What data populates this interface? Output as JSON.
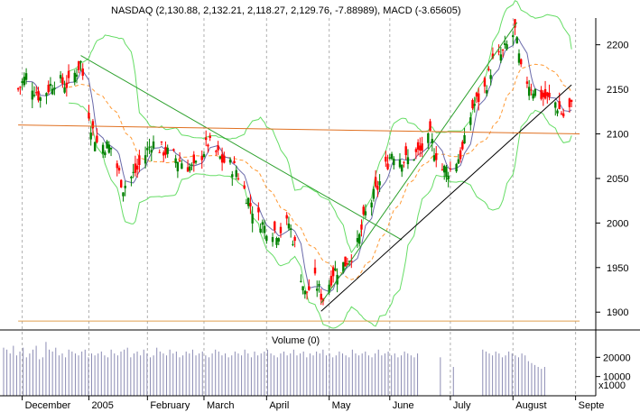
{
  "chart_data": [
    {
      "type": "candlestick",
      "panel": "price",
      "header": "NASDAQ (2,130.88, 2,132.21, 2,118.27, 2,129.76, -7.88989), MACD (-3.65605)",
      "ylim": [
        1880,
        2230
      ],
      "y_ticks": [
        "2200",
        "2150",
        "2100",
        "2050",
        "2000",
        "1950",
        "1900"
      ],
      "y_tick_values": [
        2200,
        2150,
        2100,
        2050,
        2000,
        1950,
        1900
      ],
      "grid": "vertical dashed at month starts",
      "close_path": [
        [
          "2004-11-29",
          2150
        ],
        [
          "2004-12-03",
          2165
        ],
        [
          "2004-12-10",
          2140
        ],
        [
          "2004-12-17",
          2160
        ],
        [
          "2004-12-24",
          2155
        ],
        [
          "2004-12-30",
          2180
        ],
        [
          "2005-01-04",
          2110
        ],
        [
          "2005-01-07",
          2090
        ],
        [
          "2005-01-14",
          2085
        ],
        [
          "2005-01-20",
          2040
        ],
        [
          "2005-01-27",
          2060
        ],
        [
          "2005-02-03",
          2090
        ],
        [
          "2005-02-10",
          2080
        ],
        [
          "2005-02-17",
          2070
        ],
        [
          "2005-02-24",
          2060
        ],
        [
          "2005-03-03",
          2090
        ],
        [
          "2005-03-10",
          2070
        ],
        [
          "2005-03-17",
          2060
        ],
        [
          "2005-03-24",
          2020
        ],
        [
          "2005-03-31",
          1995
        ],
        [
          "2005-04-07",
          1990
        ],
        [
          "2005-04-12",
          2000
        ],
        [
          "2005-04-15",
          1975
        ],
        [
          "2005-04-20",
          1920
        ],
        [
          "2005-04-25",
          1935
        ],
        [
          "2005-04-29",
          1915
        ],
        [
          "2005-05-04",
          1945
        ],
        [
          "2005-05-10",
          1955
        ],
        [
          "2005-05-16",
          1975
        ],
        [
          "2005-05-20",
          2010
        ],
        [
          "2005-05-26",
          2040
        ],
        [
          "2005-06-02",
          2080
        ],
        [
          "2005-06-09",
          2070
        ],
        [
          "2005-06-16",
          2080
        ],
        [
          "2005-06-21",
          2095
        ],
        [
          "2005-06-27",
          2060
        ],
        [
          "2005-07-01",
          2060
        ],
        [
          "2005-07-07",
          2080
        ],
        [
          "2005-07-12",
          2130
        ],
        [
          "2005-07-18",
          2150
        ],
        [
          "2005-07-22",
          2180
        ],
        [
          "2005-07-27",
          2190
        ],
        [
          "2005-08-02",
          2215
        ],
        [
          "2005-08-05",
          2170
        ],
        [
          "2005-08-11",
          2150
        ],
        [
          "2005-08-17",
          2140
        ],
        [
          "2005-08-22",
          2135
        ],
        [
          "2005-08-26",
          2120
        ],
        [
          "2005-08-30",
          2130
        ]
      ],
      "trendlines": [
        {
          "name": "down",
          "color": "#2ca02c",
          "from": [
            "2004-12-30",
            2188
          ],
          "to": [
            "2005-06-07",
            1981
          ]
        },
        {
          "name": "up-outer",
          "color": "#2ca02c",
          "from": [
            "2005-04-28",
            1910
          ],
          "to": [
            "2005-08-03",
            2225
          ]
        },
        {
          "name": "up-support",
          "color": "#000000",
          "from": [
            "2005-04-28",
            1901
          ],
          "to": [
            "2005-08-30",
            2155
          ]
        },
        {
          "name": "resistance",
          "color": "#e07020",
          "from": [
            "2004-11-29",
            2110
          ],
          "to": [
            "2005-09-03",
            2100
          ]
        },
        {
          "name": "floor",
          "color": "#e0a050",
          "from": [
            "2004-11-29",
            1890
          ],
          "to": [
            "2005-09-03",
            1890
          ]
        }
      ]
    },
    {
      "type": "bar",
      "panel": "volume",
      "title": "Volume (0)",
      "y_ticks": [
        "20000",
        "10000"
      ],
      "y_tick_values": [
        20000,
        10000
      ],
      "unit_label": "x1000",
      "ylim": [
        0,
        30000
      ],
      "values": [
        25000,
        24000,
        22000,
        26000,
        21000,
        23000,
        25000,
        20000,
        22000,
        24000,
        26000,
        19000,
        20000,
        28000,
        24000,
        23000,
        25000,
        21000,
        22000,
        20000,
        24000,
        23000,
        22000,
        21000,
        23000,
        24000,
        20000,
        22000,
        21000,
        22000,
        23000,
        21000,
        20000,
        24000,
        22000,
        21000,
        23000,
        24000,
        25000,
        20000,
        22000,
        23000,
        21000,
        24000,
        22000,
        20000,
        21000,
        25000,
        23000,
        22000,
        21000,
        24000,
        22000,
        23000,
        20000,
        21000,
        23000,
        22000,
        24000,
        21000,
        22000,
        23000,
        21000,
        20000,
        22000,
        24000,
        23000,
        21000,
        22000,
        20000,
        21000,
        23000,
        22000,
        21000,
        24000,
        22000,
        20000,
        23000,
        21000,
        22000,
        23000,
        24000,
        22000,
        21000,
        20000,
        22000,
        23000,
        21000,
        22000,
        24000,
        21000,
        22000,
        23000,
        20000,
        22000,
        21000,
        23000,
        22000,
        24000,
        21000,
        22000,
        20000,
        21000,
        23000,
        22000,
        21000,
        20000,
        24000,
        22000,
        21000,
        22000,
        23000,
        21000,
        20000,
        22000,
        24000,
        21000,
        22000,
        23000,
        21000,
        22000,
        20000,
        21000,
        23000,
        22000,
        21000,
        20000,
        22000,
        0,
        0,
        0,
        0,
        0,
        0,
        20000,
        0,
        0,
        0,
        15000,
        0,
        0,
        0,
        0,
        0,
        0,
        0,
        0,
        24000,
        23000,
        22000,
        21000,
        23000,
        22000,
        20000,
        21000,
        23000,
        22000,
        21000,
        20000,
        22000,
        21000,
        18000,
        17000,
        16000,
        15000,
        14000,
        15000
      ]
    }
  ],
  "x_axis": {
    "labels": [
      "December",
      "2005",
      "February",
      "March",
      "April",
      "May",
      "June",
      "July",
      "August",
      "Septe"
    ],
    "dates": [
      "2004-12-01",
      "2005-01-03",
      "2005-02-01",
      "2005-03-01",
      "2005-04-01",
      "2005-05-02",
      "2005-06-01",
      "2005-07-01",
      "2005-08-01",
      "2005-09-01"
    ]
  },
  "colors": {
    "up": "#008000",
    "down": "#ff0000",
    "ma_fast": "#6a6aaa",
    "bb_upper": "#66dd66",
    "bb_lower": "#66dd66",
    "ma_mid": "#ff9933",
    "volume": "#8c8cb4",
    "grid": "#b0b0b0",
    "arrow": "#e00000"
  }
}
